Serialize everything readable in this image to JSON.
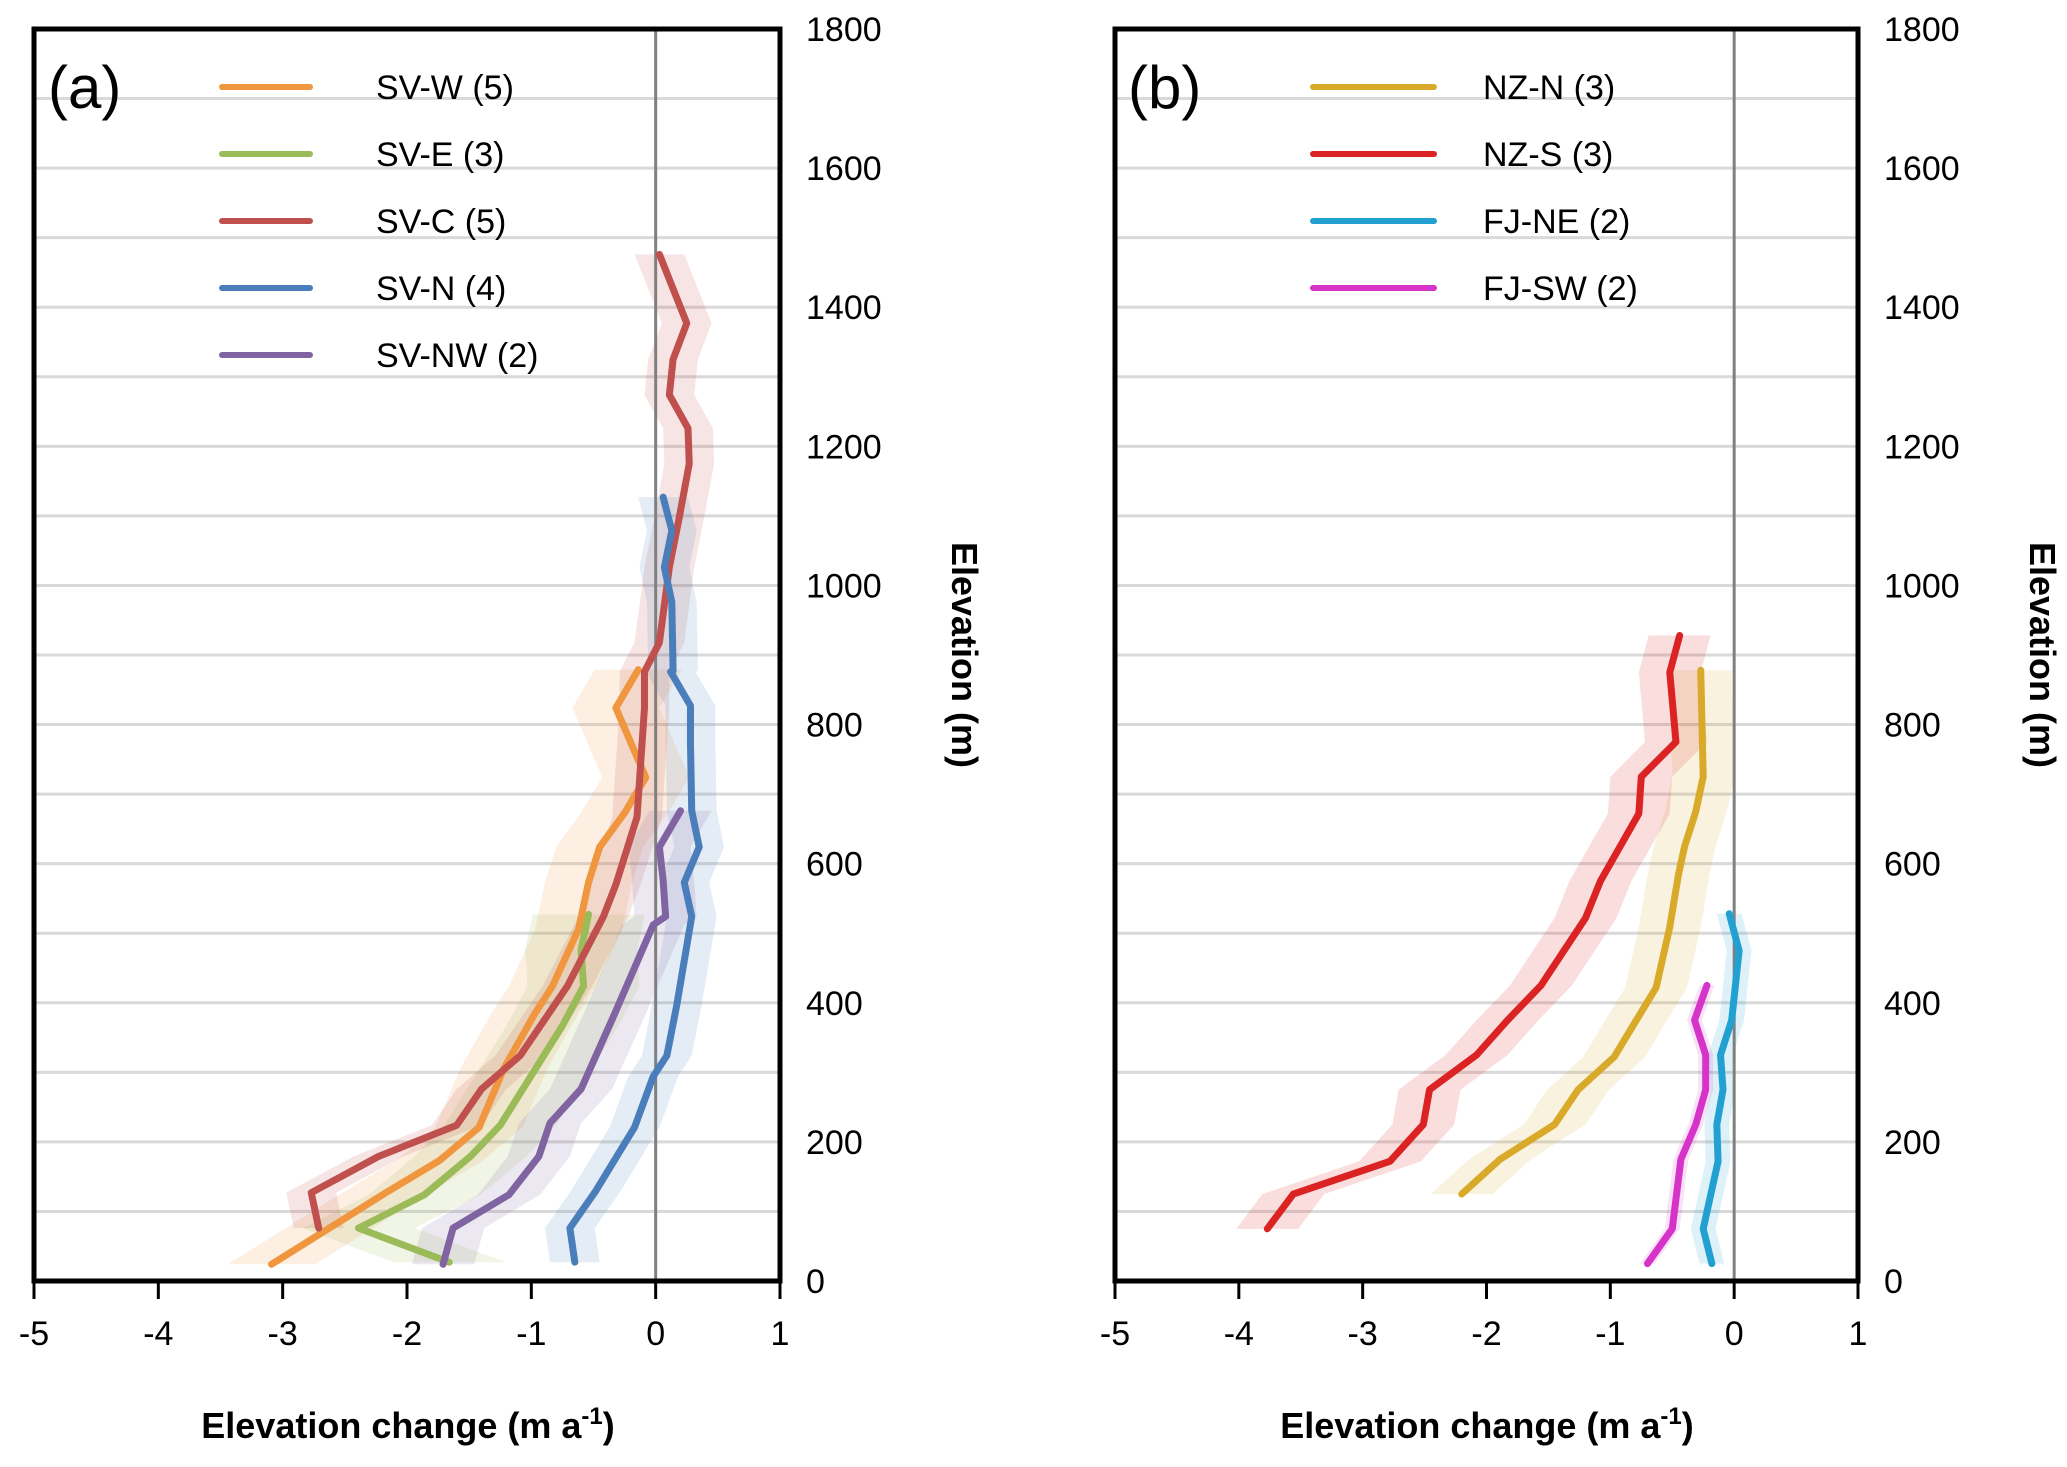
{
  "chart_data": [
    {
      "type": "line",
      "panel_label": "(a)",
      "xlabel": "Elevation change (m a",
      "xlabel_sup": "-1",
      "xlabel_close": ")",
      "ylabel": "Elevation (m)",
      "xlim": [
        -5,
        1
      ],
      "ylim": [
        0,
        1800
      ],
      "x_ticks": [
        -5,
        -4,
        -3,
        -2,
        -1,
        0,
        1
      ],
      "y_ticks": [
        0,
        200,
        400,
        600,
        800,
        1000,
        1200,
        1400,
        1600,
        1800
      ],
      "y_gridlines_every": 100,
      "grid": true,
      "zero_reference_line": 0,
      "legend_position": "top-left",
      "series": [
        {
          "name": "SV-W (5)",
          "color": "#f0963f",
          "band_halfwidth": 0.35,
          "x": [
            -3.09,
            -2.17,
            -1.74,
            -1.42,
            -1.22,
            -0.97,
            -0.83,
            -0.62,
            -0.54,
            -0.45,
            -0.25,
            -0.08,
            -0.32,
            -0.14
          ],
          "y": [
            24,
            127,
            173,
            221,
            306,
            385,
            424,
            506,
            573,
            624,
            673,
            724,
            824,
            879
          ]
        },
        {
          "name": "SV-E (3)",
          "color": "#9bbb59",
          "band_halfwidth": 0.45,
          "x": [
            -1.66,
            -2.39,
            -1.86,
            -1.49,
            -1.25,
            -0.75,
            -0.58,
            -0.6,
            -0.54
          ],
          "y": [
            27,
            76,
            124,
            179,
            224,
            367,
            424,
            476,
            527
          ]
        },
        {
          "name": "SV-C (5)",
          "color": "#c0504d",
          "band_halfwidth": 0.2,
          "x": [
            -2.71,
            -2.77,
            -2.23,
            -1.6,
            -1.4,
            -1.09,
            -0.71,
            -0.42,
            -0.32,
            -0.15,
            -0.09,
            -0.09,
            0.03,
            0.11,
            0.19,
            0.27,
            0.26,
            0.11,
            0.14,
            0.25,
            0.03
          ],
          "y": [
            76,
            127,
            179,
            224,
            276,
            324,
            424,
            524,
            570,
            667,
            824,
            876,
            918,
            1026,
            1098,
            1175,
            1226,
            1274,
            1325,
            1377,
            1476
          ]
        },
        {
          "name": "SV-N (4)",
          "color": "#4a7ebb",
          "band_halfwidth": 0.2,
          "x": [
            -0.65,
            -0.69,
            -0.48,
            -0.17,
            -0.02,
            0.09,
            0.17,
            0.29,
            0.23,
            0.35,
            0.29,
            0.28,
            0.28,
            0.12,
            0.14,
            0.13,
            0.07,
            0.13,
            0.06
          ],
          "y": [
            27,
            76,
            130,
            221,
            294,
            324,
            397,
            524,
            573,
            624,
            676,
            773,
            827,
            876,
            877,
            976,
            1026,
            1079,
            1127
          ]
        },
        {
          "name": "SV-NW (2)",
          "color": "#8064a2",
          "band_halfwidth": 0.25,
          "x": [
            -1.71,
            -1.63,
            -1.18,
            -0.94,
            -0.85,
            -0.6,
            -0.35,
            -0.02,
            0.08,
            0.06,
            0.03,
            0.2
          ],
          "y": [
            24,
            76,
            124,
            179,
            227,
            276,
            376,
            512,
            524,
            576,
            624,
            676
          ]
        }
      ]
    },
    {
      "type": "line",
      "panel_label": "(b)",
      "xlabel": "Elevation change (m a",
      "xlabel_sup": "-1",
      "xlabel_close": ")",
      "ylabel": "Elevation (m)",
      "xlim": [
        -5,
        1
      ],
      "ylim": [
        0,
        1800
      ],
      "x_ticks": [
        -5,
        -4,
        -3,
        -2,
        -1,
        0,
        1
      ],
      "y_ticks": [
        0,
        200,
        400,
        600,
        800,
        1000,
        1200,
        1400,
        1600,
        1800
      ],
      "y_gridlines_every": 100,
      "grid": true,
      "zero_reference_line": 0,
      "legend_position": "top-left",
      "series": [
        {
          "name": "NZ-N (3)",
          "color": "#d9aa2a",
          "band_halfwidth": 0.25,
          "x": [
            -2.2,
            -1.89,
            -1.45,
            -1.26,
            -0.97,
            -0.63,
            -0.52,
            -0.45,
            -0.4,
            -0.31,
            -0.25,
            -0.27
          ],
          "y": [
            125,
            175,
            225,
            275,
            322,
            422,
            509,
            584,
            625,
            675,
            725,
            878
          ]
        },
        {
          "name": "NZ-S (3)",
          "color": "#dc2323",
          "band_halfwidth": 0.25,
          "x": [
            -3.77,
            -3.56,
            -2.78,
            -2.51,
            -2.46,
            -2.08,
            -1.83,
            -1.56,
            -1.2,
            -1.08,
            -0.77,
            -0.75,
            -0.47,
            -0.52,
            -0.44
          ],
          "y": [
            75,
            125,
            172,
            225,
            275,
            325,
            375,
            425,
            522,
            575,
            672,
            725,
            775,
            875,
            928
          ]
        },
        {
          "name": "FJ-NE (2)",
          "color": "#23a0d2",
          "band_halfwidth": 0.1,
          "x": [
            -0.18,
            -0.25,
            -0.13,
            -0.14,
            -0.09,
            -0.11,
            -0.02,
            0.04,
            -0.04
          ],
          "y": [
            25,
            75,
            172,
            225,
            275,
            325,
            375,
            475,
            528
          ]
        },
        {
          "name": "FJ-SW (2)",
          "color": "#d633c8",
          "band_halfwidth": 0.06,
          "x": [
            -0.7,
            -0.5,
            -0.43,
            -0.31,
            -0.23,
            -0.23,
            -0.32,
            -0.22
          ],
          "y": [
            25,
            75,
            175,
            225,
            275,
            325,
            375,
            425
          ]
        }
      ]
    }
  ]
}
